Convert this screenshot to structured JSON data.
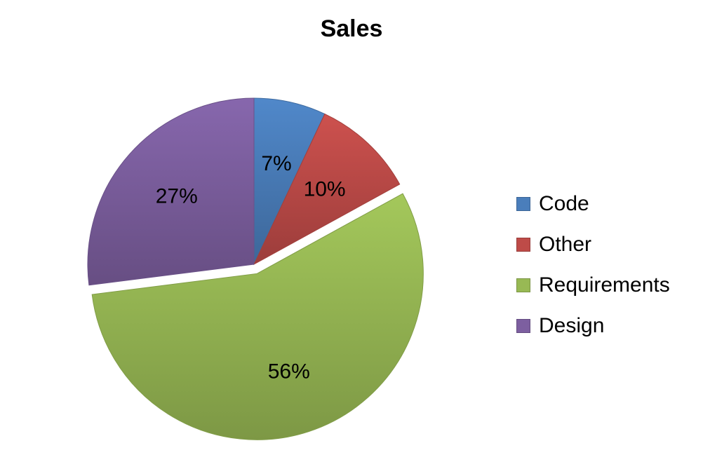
{
  "chart_data": {
    "type": "pie",
    "title": "Sales",
    "categories": [
      "Code",
      "Other",
      "Requirements",
      "Design"
    ],
    "values": [
      7,
      10,
      56,
      27
    ],
    "data_labels": [
      "7%",
      "10%",
      "56%",
      "27%"
    ],
    "exploded": [
      false,
      false,
      true,
      false
    ],
    "colors": [
      "#4a7ebb",
      "#be4b48",
      "#98b954",
      "#7d5fa0"
    ],
    "legend_position": "right"
  }
}
